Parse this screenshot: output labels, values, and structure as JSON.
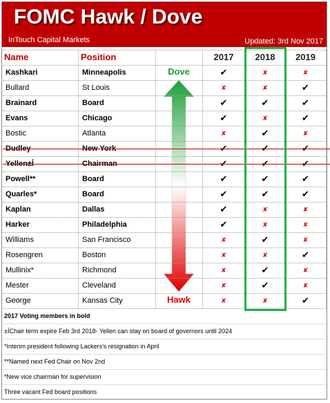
{
  "header": {
    "title": "FOMC Hawk / Dove",
    "source": "InTouch Capital Markets",
    "updated": "Updated: 3rd Nov 2017"
  },
  "table": {
    "columns": [
      "Name",
      "Position",
      "2017",
      "2018",
      "2019"
    ],
    "scale": {
      "top": "Dove",
      "bottom": "Hawk"
    },
    "rows": [
      {
        "name": "Kashkari",
        "position": "Minneapolis",
        "votes": [
          "✔",
          "✘",
          "✘"
        ],
        "bold": true,
        "struck": false
      },
      {
        "name": "Bullard",
        "position": "St Louis",
        "votes": [
          "✘",
          "✘",
          "✔"
        ],
        "bold": false,
        "struck": false
      },
      {
        "name": "Brainard",
        "position": "Board",
        "votes": [
          "✔",
          "✔",
          "✔"
        ],
        "bold": true,
        "struck": false
      },
      {
        "name": "Evans",
        "position": "Chicago",
        "votes": [
          "✔",
          "✘",
          "✔"
        ],
        "bold": true,
        "struck": false
      },
      {
        "name": "Bostic",
        "position": "Atlanta",
        "votes": [
          "✘",
          "✔",
          "✘"
        ],
        "bold": false,
        "struck": false
      },
      {
        "name": "Dudley",
        "position": "New York",
        "votes": [
          "✔",
          "✔",
          "✔"
        ],
        "bold": true,
        "struck": true
      },
      {
        "name": "Yellen±Í",
        "position": "Chairman",
        "votes": [
          "✔",
          "✔",
          "✔"
        ],
        "bold": true,
        "struck": true
      },
      {
        "name": "Powell**",
        "position": "Board",
        "votes": [
          "✔",
          "✔",
          "✔"
        ],
        "bold": true,
        "struck": false
      },
      {
        "name": "Quarles*",
        "position": "Board",
        "votes": [
          "✔",
          "✔",
          "✔"
        ],
        "bold": true,
        "struck": false
      },
      {
        "name": "Kaplan",
        "position": "Dallas",
        "votes": [
          "✔",
          "✘",
          "✘"
        ],
        "bold": true,
        "struck": false
      },
      {
        "name": "Harker",
        "position": "Philadelphia",
        "votes": [
          "✔",
          "✘",
          "✘"
        ],
        "bold": true,
        "struck": false
      },
      {
        "name": "Williams",
        "position": "San Francisco",
        "votes": [
          "✘",
          "✔",
          "✘"
        ],
        "bold": false,
        "struck": false
      },
      {
        "name": "Rosengren",
        "position": "Boston",
        "votes": [
          "✘",
          "✘",
          "✔"
        ],
        "bold": false,
        "struck": false
      },
      {
        "name": "Mullinix*",
        "position": "Richmond",
        "votes": [
          "✘",
          "✔",
          "✘"
        ],
        "bold": false,
        "struck": false
      },
      {
        "name": "Mester",
        "position": "Cleveland",
        "votes": [
          "✘",
          "✔",
          "✘"
        ],
        "bold": false,
        "struck": false
      },
      {
        "name": "George",
        "position": "Kansas City",
        "votes": [
          "✘",
          "✘",
          "✔"
        ],
        "bold": false,
        "struck": false
      }
    ]
  },
  "notes": [
    {
      "text": "2017 Voting members in bold",
      "bold": true
    },
    {
      "text": "±ÍChair term expire Feb 3rd 2018- Yellen can stay on board of governors until 2024",
      "bold": false
    },
    {
      "text": "*Interim president following Lackers's resignation in April",
      "bold": false
    },
    {
      "text": "**Named next Fed Chair on Nov 2nd",
      "bold": false
    },
    {
      "text": "*New vice chairman for supervision",
      "bold": false
    },
    {
      "text": "Three vacant Fed board positions",
      "bold": false
    }
  ]
}
